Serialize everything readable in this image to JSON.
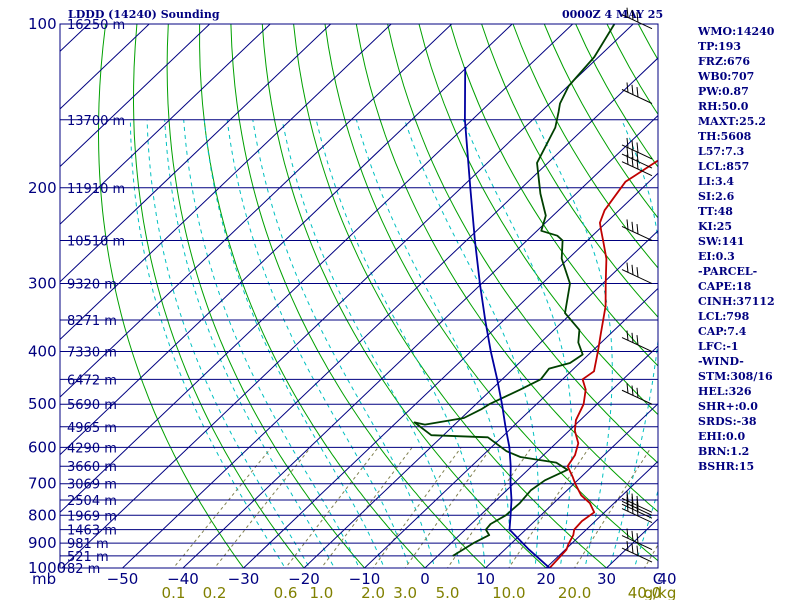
{
  "header": {
    "title": "LDDD (14240) Sounding",
    "valid_time": "0000Z  4 MAY 25"
  },
  "indices": [
    "WMO:14240",
    "TP:193",
    "FRZ:676",
    "WB0:707",
    "PW:0.87",
    "RH:50.0",
    "MAXT:25.2",
    "TH:5608",
    "L57:7.3",
    "LCL:857",
    "LI:3.4",
    "SI:2.6",
    "TT:48",
    "KI:25",
    "SW:141",
    "EI:0.3",
    "-PARCEL-",
    "CAPE:18",
    "CINH:37112",
    "LCL:798",
    "CAP:7.4",
    "LFC:-1",
    "-WIND-",
    "STM:308/16",
    "HEL:326",
    "SHR+:0.0",
    "SRDS:-38",
    "EHI:0.0",
    "BRN:1.2",
    "BSHR:15"
  ],
  "chart_data": {
    "type": "line",
    "subtype": "skew-T log-P sounding",
    "y_axis": {
      "unit": "mb",
      "ticks": [
        100,
        200,
        300,
        400,
        500,
        600,
        700,
        800,
        900,
        1000
      ],
      "range": [
        1000,
        100
      ],
      "scale": "log"
    },
    "x_axis": {
      "unit": "C",
      "ticks": [
        -50,
        -40,
        -30,
        -20,
        -10,
        0,
        10,
        20,
        30,
        40
      ],
      "unit_label": "C"
    },
    "y_unit_label": "mb",
    "mixing_ratio_axis": {
      "unit": "g/kg",
      "ticks": [
        "0.1",
        "0.2",
        "0.6",
        "1.0",
        "2.0",
        "3.0",
        "5.0",
        "10.0",
        "20.0",
        "40.0"
      ],
      "unit_label": "g/kg"
    },
    "height_levels": [
      {
        "p": 100,
        "label": "16250 m"
      },
      {
        "p": 150,
        "label": "13700 m"
      },
      {
        "p": 200,
        "label": "11910 m"
      },
      {
        "p": 250,
        "label": "10510 m"
      },
      {
        "p": 300,
        "label": "9320 m"
      },
      {
        "p": 350,
        "label": "8271 m"
      },
      {
        "p": 400,
        "label": "7330 m"
      },
      {
        "p": 450,
        "label": "6472 m"
      },
      {
        "p": 500,
        "label": "5690 m"
      },
      {
        "p": 550,
        "label": "4965 m"
      },
      {
        "p": 600,
        "label": "4290 m"
      },
      {
        "p": 650,
        "label": "3660 m"
      },
      {
        "p": 700,
        "label": "3069 m"
      },
      {
        "p": 750,
        "label": "2504 m"
      },
      {
        "p": 800,
        "label": "1969 m"
      },
      {
        "p": 850,
        "label": "1463 m"
      },
      {
        "p": 900,
        "label": "981 m"
      },
      {
        "p": 950,
        "label": "521 m"
      },
      {
        "p": 1000,
        "label": "82 m"
      }
    ],
    "series": [
      {
        "role": "temperature",
        "color": "#c00000",
        "points": [
          [
            1012,
            20.6
          ],
          [
            1000,
            20.6
          ],
          [
            960,
            20.4
          ],
          [
            925,
            20.2
          ],
          [
            905,
            19.6
          ],
          [
            870,
            18.8
          ],
          [
            850,
            18.0
          ],
          [
            820,
            17.8
          ],
          [
            790,
            18.3
          ],
          [
            760,
            16.0
          ],
          [
            735,
            13.2
          ],
          [
            700,
            10.2
          ],
          [
            680,
            8.6
          ],
          [
            650,
            5.9
          ],
          [
            620,
            5.2
          ],
          [
            590,
            3.7
          ],
          [
            560,
            1.0
          ],
          [
            535,
            -0.7
          ],
          [
            500,
            -2.2
          ],
          [
            470,
            -4.4
          ],
          [
            450,
            -6.7
          ],
          [
            435,
            -6.2
          ],
          [
            400,
            -9.0
          ],
          [
            370,
            -11.7
          ],
          [
            330,
            -15.6
          ],
          [
            300,
            -19.5
          ],
          [
            270,
            -23.7
          ],
          [
            250,
            -27.4
          ],
          [
            240,
            -29.4
          ],
          [
            232,
            -31.0
          ],
          [
            220,
            -32.4
          ],
          [
            195,
            -33.9
          ],
          [
            180,
            -32.4
          ],
          [
            163,
            -30.6
          ],
          [
            150,
            -26.4
          ],
          [
            140,
            -23.9
          ],
          [
            125,
            -21.1
          ],
          [
            110,
            -18.7
          ],
          [
            100,
            -16.6
          ]
        ]
      },
      {
        "role": "dewpoint",
        "color": "#004000",
        "points": [
          [
            950,
            2.5
          ],
          [
            900,
            3.7
          ],
          [
            870,
            4.9
          ],
          [
            850,
            3.4
          ],
          [
            830,
            3.2
          ],
          [
            800,
            4.2
          ],
          [
            760,
            4.4
          ],
          [
            720,
            4.0
          ],
          [
            690,
            4.6
          ],
          [
            660,
            6.5
          ],
          [
            640,
            3.4
          ],
          [
            625,
            -3.5
          ],
          [
            610,
            -6.8
          ],
          [
            575,
            -12.3
          ],
          [
            570,
            -22.0
          ],
          [
            540,
            -27.0
          ],
          [
            545,
            -24.9
          ],
          [
            530,
            -19.6
          ],
          [
            510,
            -18.2
          ],
          [
            500,
            -17.8
          ],
          [
            470,
            -15.2
          ],
          [
            450,
            -13.6
          ],
          [
            430,
            -14.1
          ],
          [
            420,
            -11.6
          ],
          [
            405,
            -11.0
          ],
          [
            385,
            -13.8
          ],
          [
            365,
            -15.8
          ],
          [
            340,
            -21.1
          ],
          [
            300,
            -25.4
          ],
          [
            270,
            -31.1
          ],
          [
            250,
            -34.1
          ],
          [
            245,
            -35.8
          ],
          [
            240,
            -39.3
          ],
          [
            225,
            -41.2
          ],
          [
            205,
            -45.9
          ],
          [
            180,
            -51.8
          ],
          [
            155,
            -54.9
          ],
          [
            145,
            -57.1
          ],
          [
            140,
            -58.3
          ],
          [
            130,
            -59.9
          ],
          [
            115,
            -60.7
          ],
          [
            100,
            -63.1
          ]
        ]
      },
      {
        "role": "parcel",
        "color": "#0000a0",
        "points": [
          [
            1000,
            20.6
          ],
          [
            925,
            14.0
          ],
          [
            850,
            7.3
          ],
          [
            800,
            5.0
          ],
          [
            750,
            2.5
          ],
          [
            700,
            -0.5
          ],
          [
            650,
            -3.5
          ],
          [
            600,
            -7.0
          ],
          [
            550,
            -11.2
          ],
          [
            500,
            -15.7
          ],
          [
            450,
            -20.8
          ],
          [
            400,
            -26.7
          ],
          [
            350,
            -33.1
          ],
          [
            300,
            -40.3
          ],
          [
            250,
            -48.6
          ],
          [
            200,
            -58.5
          ],
          [
            150,
            -71.2
          ],
          [
            120,
            -80.3
          ]
        ]
      }
    ],
    "wind_barbs": [
      {
        "p": 102
      },
      {
        "p": 140
      },
      {
        "p": 177
      },
      {
        "p": 184
      },
      {
        "p": 190
      },
      {
        "p": 250
      },
      {
        "p": 300
      },
      {
        "p": 400
      },
      {
        "p": 500
      },
      {
        "p": 790
      },
      {
        "p": 800
      },
      {
        "p": 810
      },
      {
        "p": 825
      },
      {
        "p": 925
      },
      {
        "p": 975
      }
    ],
    "colors": {
      "isobar": "#000080",
      "isotherm": "#000080",
      "dry_adiabat": "#00a000",
      "moist_adiabat": "#00c0c0",
      "mixing_ratio": "#808050",
      "axis_text": "#000080",
      "mixing_text": "#808000"
    }
  }
}
